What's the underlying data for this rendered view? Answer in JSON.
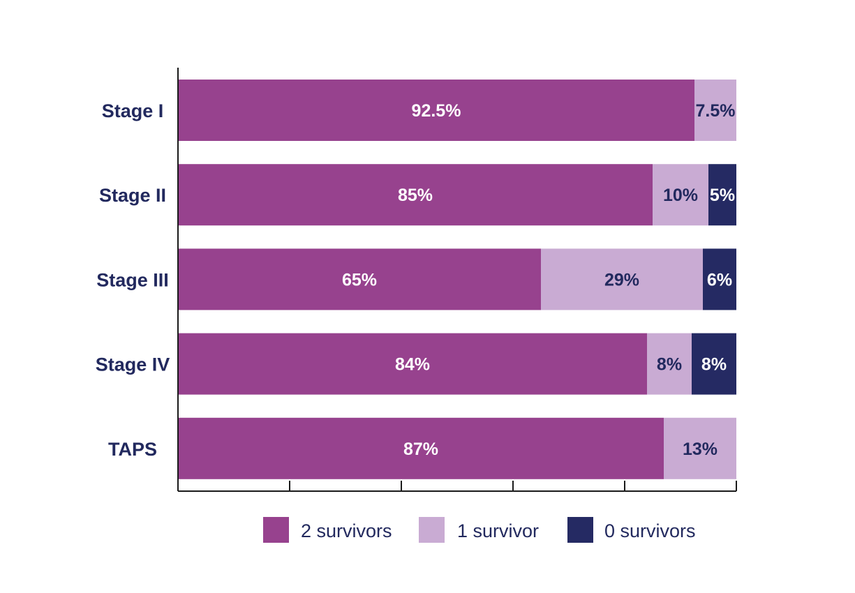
{
  "chart_data": {
    "type": "bar",
    "orientation": "horizontal",
    "stacked": true,
    "categories": [
      "Stage I",
      "Stage II",
      "Stage III",
      "Stage IV",
      "TAPS"
    ],
    "series": [
      {
        "name": "2 survivors",
        "color": "#97428e",
        "label_color": "#ffffff",
        "values": [
          92.5,
          85,
          65,
          84,
          87
        ],
        "labels": [
          "92.5%",
          "85%",
          "65%",
          "84%",
          "87%"
        ]
      },
      {
        "name": "1 survivor",
        "color": "#c9abd3",
        "label_color": "#22295e",
        "values": [
          7.5,
          10,
          29,
          8,
          13
        ],
        "labels": [
          "7.5%",
          "10%",
          "29%",
          "8%",
          "13%"
        ]
      },
      {
        "name": "0 survivors",
        "color": "#252a63",
        "label_color": "#ffffff",
        "values": [
          0,
          5,
          6,
          8,
          0
        ],
        "labels": [
          "",
          "5%",
          "6%",
          "8%",
          ""
        ]
      }
    ],
    "xlim": [
      0,
      100
    ],
    "x_ticks": [
      0,
      20,
      40,
      60,
      80,
      100
    ],
    "tick_labels_shown": false,
    "grid": false,
    "legend": "bottom",
    "axis_color": "#1a1a1a",
    "category_label_color": "#22295e"
  }
}
